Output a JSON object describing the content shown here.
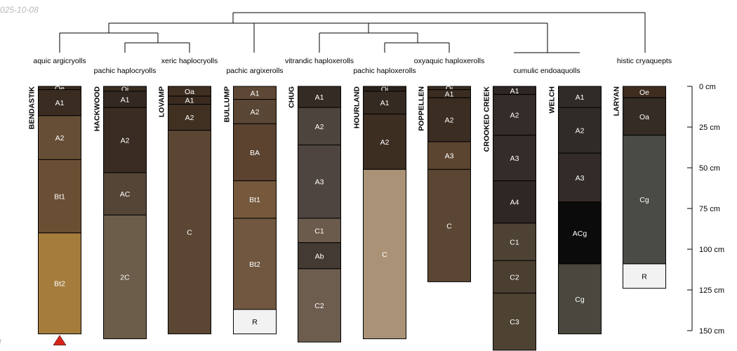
{
  "date_label": "025-10-08",
  "corner_mark": "ll",
  "depth_axis": {
    "unit": "cm",
    "ticks": [
      {
        "value": 0,
        "label": "0 cm"
      },
      {
        "value": 25,
        "label": "25 cm"
      },
      {
        "value": 50,
        "label": "50 cm"
      },
      {
        "value": 75,
        "label": "75 cm"
      },
      {
        "value": 100,
        "label": "100 cm"
      },
      {
        "value": 125,
        "label": "125 cm"
      },
      {
        "value": 150,
        "label": "150 cm"
      }
    ]
  },
  "profiles": [
    {
      "name": "BENDASTIK",
      "taxon": "aquic argicryolls",
      "marker": "triangle",
      "marker_color": "#d9241b",
      "horizons": [
        {
          "name": "Oe",
          "top": 0,
          "bottom": 2,
          "color": "#3a2a1e"
        },
        {
          "name": "A1",
          "top": 2,
          "bottom": 18,
          "color": "#3a2c21"
        },
        {
          "name": "A2",
          "top": 18,
          "bottom": 45,
          "color": "#664d35"
        },
        {
          "name": "Bt1",
          "top": 45,
          "bottom": 90,
          "color": "#6b4f34"
        },
        {
          "name": "Bt2",
          "top": 90,
          "bottom": 152,
          "color": "#a67c3d"
        }
      ]
    },
    {
      "name": "HACKWOOD",
      "taxon": "pachic haplocryolls",
      "horizons": [
        {
          "name": "Oi",
          "top": 0,
          "bottom": 3,
          "color": "#3a2c20"
        },
        {
          "name": "A1",
          "top": 3,
          "bottom": 13,
          "color": "#332822"
        },
        {
          "name": "A2",
          "top": 13,
          "bottom": 53,
          "color": "#3a2c22"
        },
        {
          "name": "AC",
          "top": 53,
          "bottom": 79,
          "color": "#544537"
        },
        {
          "name": "2C",
          "top": 79,
          "bottom": 155,
          "color": "#6b5d49"
        }
      ]
    },
    {
      "name": "LOVAMP",
      "taxon": "xeric haplocryolls",
      "horizons": [
        {
          "name": "Oa",
          "top": 0,
          "bottom": 6,
          "color": "#3f2f22"
        },
        {
          "name": "A1",
          "top": 6,
          "bottom": 11,
          "color": "#3a2a20"
        },
        {
          "name": "A2",
          "top": 11,
          "bottom": 27,
          "color": "#3f3022"
        },
        {
          "name": "C",
          "top": 27,
          "bottom": 152,
          "color": "#5a4632"
        }
      ]
    },
    {
      "name": "BULLUMP",
      "taxon": "pachic argixerolls",
      "horizons": [
        {
          "name": "A1",
          "top": 0,
          "bottom": 8,
          "color": "#5e4835"
        },
        {
          "name": "A2",
          "top": 8,
          "bottom": 23,
          "color": "#5a4634"
        },
        {
          "name": "BA",
          "top": 23,
          "bottom": 58,
          "color": "#5b4330"
        },
        {
          "name": "Bt1",
          "top": 58,
          "bottom": 81,
          "color": "#76593d"
        },
        {
          "name": "Bt2",
          "top": 81,
          "bottom": 137,
          "color": "#71573f"
        },
        {
          "name": "R",
          "top": 137,
          "bottom": 152,
          "color": "#f2f2f2"
        }
      ]
    },
    {
      "name": "CHUG",
      "taxon": "vitrandic haploxerolls",
      "horizons": [
        {
          "name": "A1",
          "top": 0,
          "bottom": 13,
          "color": "#352b25"
        },
        {
          "name": "A2",
          "top": 13,
          "bottom": 36,
          "color": "#4d443d"
        },
        {
          "name": "A3",
          "top": 36,
          "bottom": 81,
          "color": "#4e4540"
        },
        {
          "name": "C1",
          "top": 81,
          "bottom": 96,
          "color": "#6b5b4c"
        },
        {
          "name": "Ab",
          "top": 96,
          "bottom": 112,
          "color": "#433a33"
        },
        {
          "name": "C2",
          "top": 112,
          "bottom": 157,
          "color": "#6d5d4f"
        }
      ]
    },
    {
      "name": "HOURLAND",
      "taxon": "pachic haploxerolls",
      "horizons": [
        {
          "name": "Oi",
          "top": 0,
          "bottom": 3,
          "color": "#2a221b"
        },
        {
          "name": "A1",
          "top": 3,
          "bottom": 17,
          "color": "#352a22"
        },
        {
          "name": "A2",
          "top": 17,
          "bottom": 51,
          "color": "#3d2e22"
        },
        {
          "name": "C",
          "top": 51,
          "bottom": 155,
          "color": "#a99275"
        }
      ]
    },
    {
      "name": "POPPELLEN",
      "taxon": "oxyaquic haploxerolls",
      "horizons": [
        {
          "name": "Oi",
          "top": 0,
          "bottom": 2,
          "color": "#3a2c20"
        },
        {
          "name": "A1",
          "top": 2,
          "bottom": 7,
          "color": "#3a2c21"
        },
        {
          "name": "A2",
          "top": 7,
          "bottom": 34,
          "color": "#3b2d22"
        },
        {
          "name": "A3",
          "top": 34,
          "bottom": 51,
          "color": "#5c4530"
        },
        {
          "name": "C",
          "top": 51,
          "bottom": 120,
          "color": "#5a4633"
        }
      ]
    },
    {
      "name": "CROOKED CREEK",
      "taxon": "cumulic endoaquolls",
      "horizons": [
        {
          "name": "A1",
          "top": 0,
          "bottom": 5,
          "color": "#2d2623"
        },
        {
          "name": "A2",
          "top": 5,
          "bottom": 30,
          "color": "#332c28"
        },
        {
          "name": "A3",
          "top": 30,
          "bottom": 58,
          "color": "#332c28"
        },
        {
          "name": "A4",
          "top": 58,
          "bottom": 84,
          "color": "#2e2724"
        },
        {
          "name": "C1",
          "top": 84,
          "bottom": 107,
          "color": "#4d4233"
        },
        {
          "name": "C2",
          "top": 107,
          "bottom": 127,
          "color": "#4a3f31"
        },
        {
          "name": "C3",
          "top": 127,
          "bottom": 162,
          "color": "#4e4333"
        }
      ]
    },
    {
      "name": "WELCH",
      "taxon": "cumulic endoaquolls",
      "horizons": [
        {
          "name": "A1",
          "top": 0,
          "bottom": 13,
          "color": "#302b27"
        },
        {
          "name": "A2",
          "top": 13,
          "bottom": 41,
          "color": "#302b27"
        },
        {
          "name": "A3",
          "top": 41,
          "bottom": 71,
          "color": "#322b27"
        },
        {
          "name": "ACg",
          "top": 71,
          "bottom": 109,
          "color": "#0b0b0b"
        },
        {
          "name": "Cg",
          "top": 109,
          "bottom": 152,
          "color": "#4a473f"
        }
      ]
    },
    {
      "name": "LARYAN",
      "taxon": "histic cryaquepts",
      "horizons": [
        {
          "name": "Oe",
          "top": 0,
          "bottom": 7,
          "color": "#3f2e20"
        },
        {
          "name": "Oa",
          "top": 7,
          "bottom": 30,
          "color": "#342c25"
        },
        {
          "name": "Cg",
          "top": 30,
          "bottom": 109,
          "color": "#4a4b45"
        },
        {
          "name": "R",
          "top": 109,
          "bottom": 124,
          "color": "#f2f2f2"
        }
      ]
    }
  ]
}
